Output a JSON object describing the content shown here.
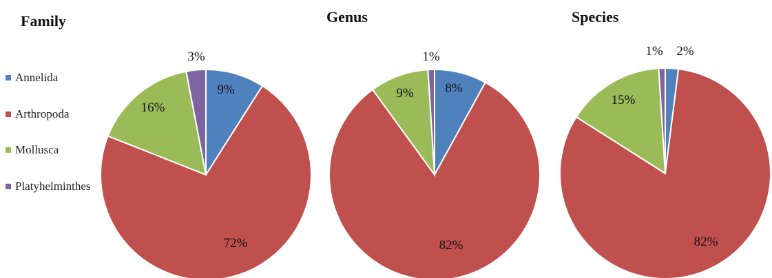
{
  "chart_data": [
    {
      "type": "pie",
      "title": "Family",
      "categories": [
        "Annelida",
        "Arthropoda",
        "Mollusca",
        "Platyhelminthes"
      ],
      "values": [
        9,
        72,
        16,
        3
      ],
      "labels": [
        "9%",
        "72%",
        "16%",
        "3%"
      ],
      "legend": "left"
    },
    {
      "type": "pie",
      "title": "Genus",
      "categories": [
        "Annelida",
        "Arthropoda",
        "Mollusca",
        "Platyhelminthes"
      ],
      "values": [
        8,
        82,
        9,
        1
      ],
      "labels": [
        "8%",
        "82%",
        "9%",
        "1%"
      ]
    },
    {
      "type": "pie",
      "title": "Species",
      "categories": [
        "Annelida",
        "Arthropoda",
        "Mollusca",
        "Platyhelminthes"
      ],
      "values": [
        2,
        82,
        15,
        1
      ],
      "labels": [
        "2%",
        "82%",
        "15%",
        "1%"
      ]
    }
  ],
  "legend": {
    "items": [
      {
        "label": "Annelida",
        "color": "#4F81BD"
      },
      {
        "label": "Arthropoda",
        "color": "#C0504D"
      },
      {
        "label": "Mollusca",
        "color": "#9BBB59"
      },
      {
        "label": "Platyhelminthes",
        "color": "#8064A2"
      }
    ]
  }
}
